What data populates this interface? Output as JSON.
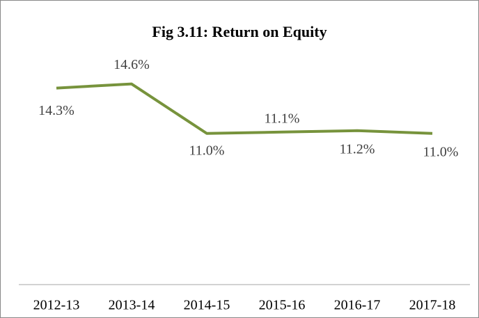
{
  "chart_data": {
    "type": "line",
    "title": "Fig 3.11: Return on Equity",
    "categories": [
      "2012-13",
      "2013-14",
      "2014-15",
      "2015-16",
      "2016-17",
      "2017-18"
    ],
    "series": [
      {
        "name": "Return on Equity",
        "color": "#77933c",
        "values": [
          14.3,
          14.6,
          11.0,
          11.1,
          11.2,
          11.0
        ],
        "value_labels": [
          "14.3%",
          "14.6%",
          "11.0%",
          "11.1%",
          "11.2%",
          "11.0%"
        ]
      }
    ],
    "ylim": [
      0,
      16
    ]
  }
}
